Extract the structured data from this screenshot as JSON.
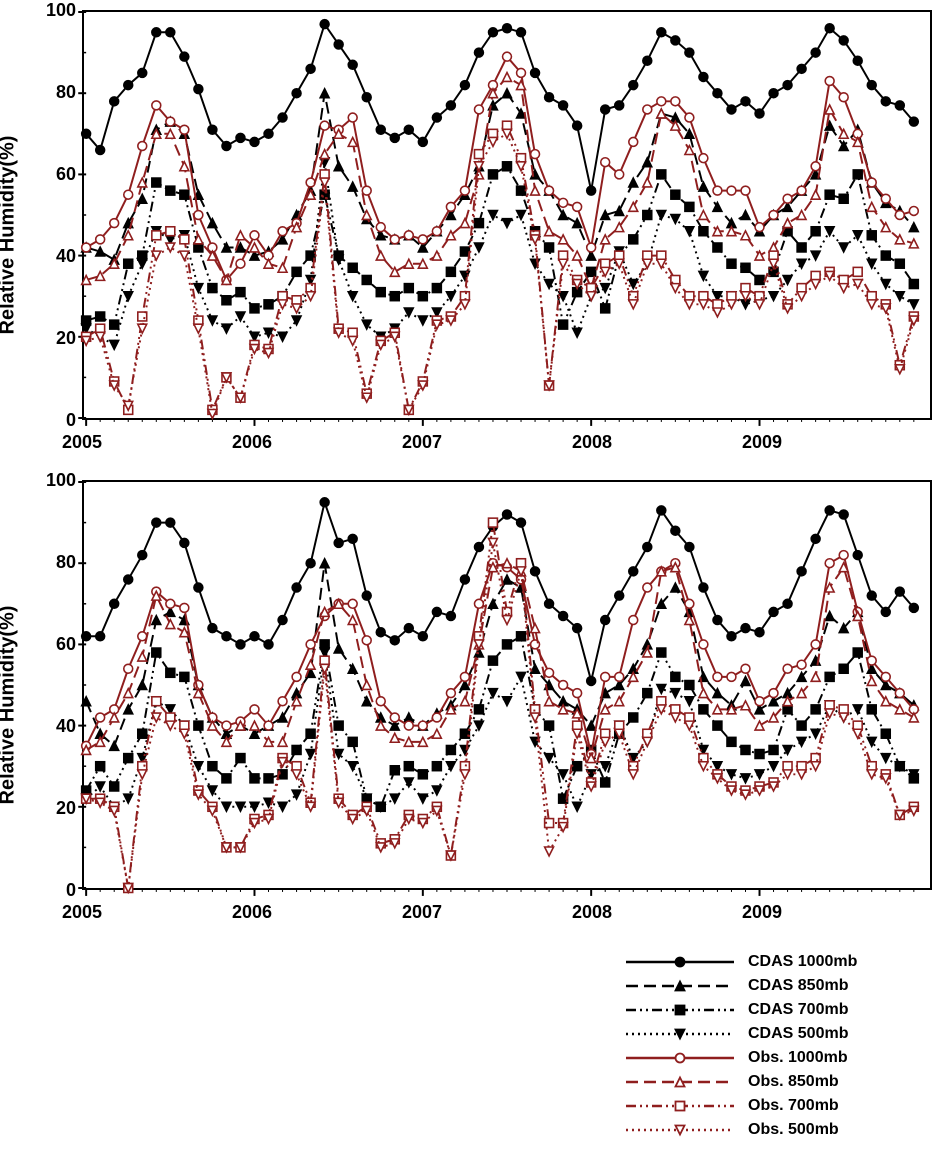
{
  "y_axis_label": "Relative Humidity(%)",
  "x_ticks": [
    2005,
    2006,
    2007,
    2008,
    2009
  ],
  "y_ticks": [
    0,
    20,
    40,
    60,
    80,
    100
  ],
  "ylim": [
    0,
    100
  ],
  "title_fontsize": 20,
  "tick_fontsize": 18,
  "legend_fontsize": 16,
  "colors": {
    "cdas": "#000000",
    "obs": "#8f1e1e"
  },
  "series_defs": [
    {
      "key": "cdas1000",
      "label": "CDAS 1000mb",
      "color": "#000000",
      "dash": "",
      "marker": "filled-circle"
    },
    {
      "key": "cdas850",
      "label": "CDAS 850mb",
      "color": "#000000",
      "dash": "12 6",
      "marker": "filled-tri-up"
    },
    {
      "key": "cdas700",
      "label": "CDAS 700mb",
      "color": "#000000",
      "dash": "10 4 2 4 2 4",
      "marker": "filled-square"
    },
    {
      "key": "cdas500",
      "label": "CDAS 500mb",
      "color": "#000000",
      "dash": "2 4",
      "marker": "filled-tri-down"
    },
    {
      "key": "obs1000",
      "label": "Obs. 1000mb",
      "color": "#8f1e1e",
      "dash": "",
      "marker": "open-circle"
    },
    {
      "key": "obs850",
      "label": "Obs. 850mb",
      "color": "#8f1e1e",
      "dash": "12 6",
      "marker": "open-tri-up"
    },
    {
      "key": "obs700",
      "label": "Obs. 700mb",
      "color": "#8f1e1e",
      "dash": "10 4 2 4 2 4",
      "marker": "open-square"
    },
    {
      "key": "obs500",
      "label": "Obs. 500mb",
      "color": "#8f1e1e",
      "dash": "2 4",
      "marker": "open-tri-down"
    }
  ],
  "panelA": {
    "cdas1000": [
      70,
      66,
      78,
      82,
      85,
      95,
      95,
      89,
      81,
      71,
      67,
      69,
      68,
      70,
      74,
      80,
      86,
      97,
      92,
      87,
      79,
      71,
      69,
      71,
      68,
      74,
      77,
      82,
      90,
      95,
      96,
      95,
      85,
      79,
      77,
      72,
      56,
      76,
      77,
      82,
      88,
      95,
      93,
      90,
      84,
      80,
      76,
      78,
      75,
      80,
      82,
      86,
      90,
      96,
      93,
      88,
      82,
      78,
      77,
      73
    ],
    "cdas850": [
      42,
      41,
      39,
      48,
      54,
      71,
      73,
      70,
      55,
      48,
      42,
      42,
      40,
      41,
      44,
      50,
      56,
      80,
      62,
      57,
      49,
      45,
      44,
      45,
      42,
      46,
      50,
      55,
      62,
      77,
      80,
      75,
      60,
      56,
      50,
      48,
      40,
      50,
      51,
      58,
      63,
      75,
      74,
      70,
      57,
      52,
      48,
      50,
      46,
      50,
      52,
      56,
      60,
      72,
      67,
      71,
      58,
      53,
      51,
      47
    ],
    "cdas700": [
      24,
      25,
      23,
      38,
      40,
      58,
      56,
      55,
      42,
      32,
      29,
      31,
      27,
      28,
      30,
      36,
      40,
      55,
      40,
      37,
      34,
      31,
      30,
      32,
      30,
      32,
      36,
      41,
      48,
      60,
      62,
      56,
      46,
      42,
      23,
      31,
      36,
      27,
      40,
      44,
      50,
      60,
      55,
      52,
      46,
      42,
      38,
      37,
      34,
      36,
      46,
      42,
      46,
      55,
      54,
      60,
      45,
      40,
      38,
      33
    ],
    "cdas500": [
      22,
      20,
      18,
      30,
      38,
      46,
      44,
      45,
      32,
      24,
      22,
      25,
      20,
      21,
      20,
      24,
      34,
      63,
      39,
      30,
      23,
      20,
      22,
      26,
      24,
      26,
      30,
      35,
      42,
      50,
      48,
      50,
      38,
      33,
      30,
      21,
      30,
      32,
      41,
      33,
      38,
      50,
      49,
      46,
      35,
      30,
      30,
      28,
      29,
      30,
      34,
      38,
      40,
      46,
      42,
      45,
      38,
      33,
      30,
      28
    ],
    "obs1000": [
      42,
      44,
      48,
      55,
      67,
      77,
      73,
      71,
      50,
      42,
      34,
      38,
      45,
      40,
      46,
      48,
      58,
      72,
      71,
      74,
      56,
      47,
      44,
      45,
      44,
      46,
      52,
      56,
      76,
      82,
      89,
      85,
      65,
      56,
      53,
      52,
      42,
      63,
      60,
      68,
      76,
      78,
      78,
      74,
      64,
      56,
      56,
      56,
      47,
      50,
      54,
      56,
      62,
      83,
      79,
      70,
      58,
      54,
      50,
      51
    ],
    "obs850": [
      34,
      35,
      38,
      45,
      58,
      70,
      70,
      62,
      44,
      40,
      34,
      45,
      42,
      38,
      37,
      47,
      55,
      65,
      70,
      68,
      50,
      40,
      36,
      38,
      38,
      40,
      45,
      48,
      60,
      80,
      84,
      82,
      56,
      46,
      44,
      40,
      32,
      44,
      47,
      52,
      58,
      75,
      72,
      66,
      50,
      46,
      46,
      45,
      40,
      42,
      48,
      50,
      55,
      76,
      70,
      68,
      52,
      47,
      44,
      43
    ],
    "obs700": [
      20,
      22,
      9,
      2,
      25,
      45,
      46,
      44,
      24,
      2,
      10,
      5,
      18,
      17,
      30,
      29,
      32,
      60,
      22,
      21,
      6,
      19,
      21,
      2,
      9,
      24,
      25,
      30,
      65,
      70,
      72,
      64,
      45,
      8,
      40,
      34,
      32,
      38,
      40,
      30,
      40,
      40,
      34,
      30,
      30,
      28,
      30,
      32,
      30,
      40,
      28,
      32,
      35,
      36,
      34,
      36,
      30,
      28,
      13,
      25
    ],
    "obs500": [
      19,
      20,
      8,
      3,
      22,
      40,
      42,
      40,
      22,
      1,
      10,
      5,
      17,
      16,
      28,
      27,
      30,
      58,
      21,
      19,
      5,
      18,
      20,
      2,
      8,
      23,
      24,
      28,
      62,
      68,
      70,
      62,
      44,
      8,
      38,
      33,
      30,
      36,
      38,
      28,
      38,
      38,
      32,
      28,
      28,
      26,
      28,
      30,
      28,
      38,
      27,
      30,
      33,
      35,
      32,
      33,
      28,
      27,
      12,
      24
    ]
  },
  "panelB": {
    "cdas1000": [
      62,
      62,
      70,
      76,
      82,
      90,
      90,
      85,
      74,
      64,
      62,
      60,
      62,
      60,
      66,
      74,
      80,
      95,
      85,
      86,
      72,
      63,
      61,
      64,
      62,
      68,
      67,
      76,
      84,
      89,
      92,
      90,
      78,
      70,
      67,
      64,
      51,
      66,
      72,
      78,
      84,
      93,
      88,
      84,
      74,
      66,
      62,
      64,
      63,
      68,
      70,
      78,
      86,
      93,
      92,
      82,
      72,
      68,
      73,
      69
    ],
    "cdas850": [
      46,
      38,
      35,
      44,
      50,
      66,
      68,
      66,
      50,
      42,
      38,
      40,
      38,
      40,
      42,
      48,
      53,
      80,
      59,
      54,
      46,
      42,
      40,
      42,
      40,
      43,
      45,
      50,
      58,
      70,
      76,
      74,
      54,
      50,
      46,
      44,
      40,
      48,
      50,
      54,
      60,
      70,
      74,
      68,
      52,
      48,
      45,
      51,
      44,
      46,
      48,
      52,
      56,
      67,
      64,
      68,
      54,
      50,
      48,
      45
    ],
    "cdas700": [
      24,
      30,
      25,
      32,
      38,
      58,
      53,
      52,
      40,
      30,
      27,
      32,
      27,
      27,
      28,
      34,
      38,
      60,
      40,
      36,
      22,
      20,
      29,
      30,
      28,
      30,
      34,
      38,
      44,
      56,
      60,
      62,
      44,
      40,
      22,
      30,
      34,
      26,
      38,
      42,
      48,
      58,
      52,
      50,
      44,
      40,
      36,
      34,
      33,
      34,
      44,
      40,
      44,
      52,
      54,
      58,
      44,
      38,
      30,
      27
    ],
    "cdas500": [
      22,
      25,
      20,
      22,
      32,
      46,
      44,
      40,
      30,
      24,
      20,
      20,
      20,
      21,
      20,
      23,
      33,
      58,
      33,
      30,
      22,
      20,
      22,
      26,
      22,
      24,
      30,
      34,
      40,
      48,
      46,
      52,
      36,
      32,
      28,
      20,
      28,
      30,
      40,
      32,
      36,
      49,
      48,
      46,
      34,
      30,
      28,
      27,
      28,
      30,
      34,
      36,
      38,
      45,
      42,
      44,
      36,
      32,
      30,
      28
    ],
    "obs1000": [
      35,
      42,
      44,
      54,
      62,
      73,
      70,
      69,
      50,
      42,
      40,
      41,
      44,
      40,
      46,
      52,
      60,
      67,
      70,
      70,
      61,
      46,
      42,
      40,
      40,
      42,
      48,
      52,
      70,
      80,
      79,
      76,
      60,
      53,
      50,
      48,
      33,
      52,
      52,
      66,
      74,
      78,
      80,
      70,
      60,
      52,
      52,
      54,
      46,
      48,
      54,
      55,
      60,
      80,
      82,
      68,
      56,
      52,
      48,
      44
    ],
    "obs850": [
      34,
      36,
      42,
      48,
      57,
      72,
      65,
      63,
      48,
      40,
      36,
      40,
      40,
      36,
      36,
      46,
      55,
      68,
      70,
      66,
      50,
      40,
      37,
      36,
      36,
      38,
      44,
      46,
      60,
      79,
      80,
      78,
      64,
      46,
      44,
      43,
      32,
      44,
      46,
      52,
      58,
      78,
      79,
      66,
      48,
      44,
      44,
      45,
      40,
      42,
      46,
      48,
      52,
      74,
      79,
      67,
      51,
      46,
      44,
      42
    ],
    "obs700": [
      22,
      22,
      20,
      0,
      30,
      46,
      42,
      40,
      24,
      20,
      10,
      10,
      17,
      18,
      32,
      30,
      21,
      56,
      22,
      18,
      20,
      11,
      12,
      18,
      17,
      20,
      8,
      30,
      62,
      90,
      68,
      80,
      44,
      16,
      16,
      40,
      26,
      38,
      40,
      30,
      38,
      46,
      44,
      42,
      32,
      28,
      25,
      24,
      25,
      26,
      30,
      30,
      32,
      45,
      44,
      40,
      30,
      28,
      18,
      20
    ],
    "obs500": [
      22,
      21,
      19,
      0,
      28,
      42,
      40,
      38,
      23,
      19,
      10,
      10,
      16,
      17,
      31,
      28,
      20,
      54,
      21,
      17,
      19,
      10,
      11,
      17,
      16,
      19,
      8,
      28,
      60,
      85,
      66,
      78,
      42,
      9,
      15,
      38,
      25,
      36,
      38,
      28,
      36,
      44,
      42,
      40,
      30,
      27,
      24,
      23,
      24,
      25,
      28,
      28,
      30,
      43,
      42,
      38,
      28,
      27,
      18,
      19
    ]
  }
}
